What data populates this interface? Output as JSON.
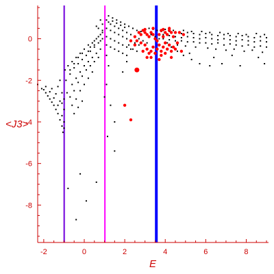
{
  "chart_data": {
    "type": "scatter",
    "title": "",
    "xlabel": "E",
    "ylabel": "<J3>",
    "xlim": [
      -2.3,
      9.1
    ],
    "ylim": [
      -9.8,
      1.6
    ],
    "x_ticks": [
      -2,
      0,
      2,
      4,
      6,
      8
    ],
    "y_ticks": [
      0,
      -2,
      -4,
      -6,
      -8
    ],
    "grid": false,
    "vertical_lines": [
      {
        "x": -0.99,
        "color": "#8a2be2"
      },
      {
        "x": 1.02,
        "color": "#ff00ff"
      },
      {
        "x": 3.56,
        "color": "#0000ff"
      }
    ],
    "series": [
      {
        "color": "#000000",
        "marker": "small-dot",
        "points": [
          [
            -2.3,
            -2.2
          ],
          [
            -2.1,
            -2.4
          ],
          [
            -1.9,
            -2.6
          ],
          [
            -1.7,
            -2.9
          ],
          [
            -1.5,
            -3.2
          ],
          [
            -1.3,
            -3.6
          ],
          [
            -1.1,
            -4.2
          ],
          [
            -1.05,
            -4.5
          ],
          [
            -2.0,
            -2.45
          ],
          [
            -1.8,
            -2.75
          ],
          [
            -1.6,
            -3.05
          ],
          [
            -1.4,
            -3.4
          ],
          [
            -1.2,
            -3.9
          ],
          [
            -1.9,
            -2.3
          ],
          [
            -1.7,
            -2.55
          ],
          [
            -1.5,
            -2.85
          ],
          [
            -1.3,
            -3.2
          ],
          [
            -1.1,
            -3.7
          ],
          [
            -1.6,
            -2.4
          ],
          [
            -1.4,
            -2.65
          ],
          [
            -1.2,
            -3.0
          ],
          [
            -1.0,
            -3.4
          ],
          [
            -1.3,
            -2.3
          ],
          [
            -1.1,
            -2.6
          ],
          [
            -1.0,
            -2.9
          ],
          [
            -1.2,
            -2.0
          ],
          [
            -1.1,
            -3.1
          ],
          [
            -1.0,
            -4.0
          ],
          [
            -1.0,
            -4.3
          ],
          [
            -0.95,
            -1.5
          ],
          [
            -0.8,
            -1.3
          ],
          [
            -0.6,
            -1.1
          ],
          [
            -0.4,
            -0.9
          ],
          [
            -0.2,
            -0.7
          ],
          [
            0.0,
            -0.5
          ],
          [
            0.2,
            -0.3
          ],
          [
            0.4,
            -0.2
          ],
          [
            0.6,
            0.0
          ],
          [
            0.8,
            0.2
          ],
          [
            0.9,
            0.3
          ],
          [
            -0.9,
            -2.0
          ],
          [
            -0.7,
            -1.7
          ],
          [
            -0.5,
            -1.4
          ],
          [
            -0.3,
            -1.2
          ],
          [
            -0.1,
            -1.0
          ],
          [
            0.1,
            -0.8
          ],
          [
            0.3,
            -0.6
          ],
          [
            0.5,
            -0.4
          ],
          [
            0.7,
            -0.2
          ],
          [
            0.9,
            0.0
          ],
          [
            -0.85,
            -2.6
          ],
          [
            -0.6,
            -2.2
          ],
          [
            -0.4,
            -1.9
          ],
          [
            -0.2,
            -1.6
          ],
          [
            0.0,
            -1.3
          ],
          [
            0.2,
            -1.1
          ],
          [
            0.4,
            -0.9
          ],
          [
            0.6,
            -0.7
          ],
          [
            0.8,
            -0.5
          ],
          [
            -0.7,
            -2.8
          ],
          [
            -0.5,
            -2.5
          ],
          [
            -0.3,
            -2.1
          ],
          [
            -0.1,
            -1.8
          ],
          [
            0.1,
            -1.5
          ],
          [
            0.3,
            -1.3
          ],
          [
            0.5,
            -1.1
          ],
          [
            0.7,
            -0.9
          ],
          [
            -0.6,
            -3.2
          ],
          [
            -0.4,
            -2.9
          ],
          [
            -0.2,
            -2.5
          ],
          [
            0.0,
            -2.2
          ],
          [
            0.2,
            -1.9
          ],
          [
            0.4,
            -1.6
          ],
          [
            -0.5,
            -3.6
          ],
          [
            -0.3,
            -3.3
          ],
          [
            -0.1,
            -3.0
          ],
          [
            -0.7,
            -1.5
          ],
          [
            -0.5,
            -1.2
          ],
          [
            -0.3,
            -0.9
          ],
          [
            -0.1,
            -0.7
          ],
          [
            0.2,
            -0.6
          ],
          [
            0.5,
            -0.3
          ],
          [
            0.8,
            -0.1
          ],
          [
            0.3,
            -0.4
          ],
          [
            0.5,
            -0.1
          ],
          [
            0.7,
            0.1
          ],
          [
            0.9,
            0.4
          ],
          [
            0.7,
            0.5
          ],
          [
            0.9,
            0.7
          ],
          [
            0.8,
            0.9
          ],
          [
            0.6,
            0.6
          ],
          [
            1.1,
            0.9
          ],
          [
            1.3,
            0.7
          ],
          [
            1.5,
            0.6
          ],
          [
            1.7,
            0.5
          ],
          [
            1.9,
            0.4
          ],
          [
            2.1,
            0.3
          ],
          [
            2.3,
            0.2
          ],
          [
            2.5,
            0.1
          ],
          [
            2.7,
            0.0
          ],
          [
            2.9,
            -0.1
          ],
          [
            3.1,
            -0.2
          ],
          [
            1.1,
            0.5
          ],
          [
            1.3,
            0.4
          ],
          [
            1.5,
            0.3
          ],
          [
            1.7,
            0.2
          ],
          [
            1.9,
            0.1
          ],
          [
            2.1,
            0.0
          ],
          [
            2.3,
            -0.1
          ],
          [
            2.5,
            -0.2
          ],
          [
            2.7,
            -0.3
          ],
          [
            1.1,
            0.1
          ],
          [
            1.3,
            0.0
          ],
          [
            1.5,
            -0.1
          ],
          [
            1.7,
            -0.2
          ],
          [
            1.9,
            -0.3
          ],
          [
            2.1,
            -0.4
          ],
          [
            2.3,
            -0.5
          ],
          [
            1.1,
            -0.3
          ],
          [
            1.3,
            -0.4
          ],
          [
            1.5,
            -0.5
          ],
          [
            1.7,
            -0.6
          ],
          [
            1.9,
            -0.7
          ],
          [
            2.1,
            -0.8
          ],
          [
            1.2,
            1.1
          ],
          [
            1.4,
            1.0
          ],
          [
            1.6,
            0.9
          ],
          [
            1.8,
            0.8
          ],
          [
            2.0,
            0.7
          ],
          [
            2.2,
            0.6
          ],
          [
            2.4,
            0.5
          ],
          [
            1.2,
            0.8
          ],
          [
            1.4,
            0.85
          ],
          [
            1.6,
            0.75
          ],
          [
            1.8,
            0.65
          ],
          [
            2.0,
            0.55
          ],
          [
            1.1,
            -0.8
          ],
          [
            1.2,
            -1.3
          ],
          [
            1.1,
            -2.2
          ],
          [
            1.0,
            -2.8
          ],
          [
            1.3,
            -3.2
          ],
          [
            1.5,
            -4.0
          ],
          [
            1.15,
            -4.7
          ],
          [
            1.5,
            -5.4
          ],
          [
            -0.8,
            -7.2
          ],
          [
            -0.4,
            -8.7
          ],
          [
            -0.2,
            -6.5
          ],
          [
            0.1,
            -7.8
          ],
          [
            0.6,
            -6.9
          ],
          [
            3.9,
            0.4
          ],
          [
            4.2,
            0.35
          ],
          [
            4.5,
            0.3
          ],
          [
            4.8,
            0.25
          ],
          [
            5.1,
            0.3
          ],
          [
            5.4,
            0.25
          ],
          [
            5.7,
            0.2
          ],
          [
            6.0,
            0.25
          ],
          [
            6.3,
            0.2
          ],
          [
            6.6,
            0.15
          ],
          [
            6.9,
            0.2
          ],
          [
            7.2,
            0.15
          ],
          [
            7.5,
            0.1
          ],
          [
            7.8,
            0.15
          ],
          [
            8.1,
            0.1
          ],
          [
            8.4,
            0.05
          ],
          [
            8.7,
            0.1
          ],
          [
            9.0,
            0.05
          ],
          [
            3.9,
            0.2
          ],
          [
            4.2,
            0.15
          ],
          [
            4.5,
            0.1
          ],
          [
            4.8,
            0.05
          ],
          [
            5.1,
            0.1
          ],
          [
            5.4,
            0.05
          ],
          [
            5.7,
            0.0
          ],
          [
            6.0,
            0.05
          ],
          [
            6.3,
            0.0
          ],
          [
            6.6,
            -0.05
          ],
          [
            6.9,
            0.0
          ],
          [
            7.2,
            -0.05
          ],
          [
            7.5,
            -0.1
          ],
          [
            7.8,
            -0.05
          ],
          [
            8.1,
            -0.1
          ],
          [
            8.4,
            -0.15
          ],
          [
            8.7,
            -0.1
          ],
          [
            9.0,
            -0.15
          ],
          [
            3.9,
            0.0
          ],
          [
            4.2,
            -0.05
          ],
          [
            4.5,
            -0.1
          ],
          [
            4.8,
            -0.1
          ],
          [
            5.1,
            -0.15
          ],
          [
            5.4,
            -0.15
          ],
          [
            5.7,
            -0.2
          ],
          [
            6.0,
            -0.2
          ],
          [
            6.3,
            -0.25
          ],
          [
            6.6,
            -0.2
          ],
          [
            6.9,
            -0.3
          ],
          [
            7.2,
            -0.25
          ],
          [
            7.5,
            -0.3
          ],
          [
            7.8,
            -0.35
          ],
          [
            8.1,
            -0.3
          ],
          [
            8.4,
            -0.4
          ],
          [
            8.7,
            -0.35
          ],
          [
            9.0,
            -0.4
          ],
          [
            4.0,
            0.45
          ],
          [
            4.4,
            0.4
          ],
          [
            4.9,
            0.4
          ],
          [
            5.3,
            0.35
          ],
          [
            5.8,
            0.35
          ],
          [
            6.2,
            0.3
          ],
          [
            6.7,
            0.3
          ],
          [
            7.1,
            0.25
          ],
          [
            7.6,
            0.25
          ],
          [
            8.0,
            0.2
          ],
          [
            8.5,
            0.25
          ],
          [
            8.9,
            0.2
          ],
          [
            4.1,
            -0.2
          ],
          [
            4.6,
            -0.3
          ],
          [
            5.0,
            -0.35
          ],
          [
            5.5,
            -0.4
          ],
          [
            6.1,
            -0.45
          ],
          [
            6.5,
            -0.5
          ],
          [
            7.0,
            -0.55
          ],
          [
            7.4,
            -0.5
          ],
          [
            7.9,
            -0.6
          ],
          [
            8.3,
            -0.55
          ],
          [
            8.8,
            -0.65
          ],
          [
            5.2,
            -0.7
          ],
          [
            6.4,
            -0.9
          ],
          [
            7.3,
            -0.8
          ],
          [
            8.6,
            -0.9
          ],
          [
            6.8,
            -1.2
          ],
          [
            7.7,
            -1.3
          ],
          [
            8.9,
            -1.2
          ],
          [
            3.2,
            0.5
          ],
          [
            3.4,
            0.45
          ],
          [
            3.6,
            0.4
          ],
          [
            3.8,
            0.35
          ],
          [
            3.3,
            0.2
          ],
          [
            3.5,
            0.1
          ],
          [
            3.7,
            0.0
          ],
          [
            2.6,
            0.4
          ],
          [
            2.8,
            0.35
          ],
          [
            3.0,
            0.3
          ],
          [
            2.4,
            -0.5
          ],
          [
            2.6,
            -0.6
          ],
          [
            2.2,
            -0.3
          ],
          [
            4.3,
            -0.4
          ],
          [
            4.6,
            -0.6
          ],
          [
            4.9,
            -0.8
          ],
          [
            5.3,
            -1.0
          ],
          [
            5.7,
            -1.2
          ],
          [
            6.2,
            -1.3
          ],
          [
            2.1,
            -1.1
          ],
          [
            1.9,
            -1.6
          ]
        ]
      },
      {
        "color": "#ff0000",
        "marker": "large-dot",
        "points": [
          [
            2.6,
            -1.5
          ],
          [
            2.3,
            -3.9
          ],
          [
            2.0,
            -3.2
          ],
          [
            2.7,
            0.3
          ],
          [
            2.8,
            0.2
          ],
          [
            2.9,
            0.4
          ],
          [
            3.0,
            0.3
          ],
          [
            3.1,
            0.2
          ],
          [
            3.2,
            0.1
          ],
          [
            3.3,
            0.3
          ],
          [
            3.4,
            0.2
          ],
          [
            3.5,
            0.0
          ],
          [
            3.6,
            -0.1
          ],
          [
            3.7,
            0.2
          ],
          [
            3.8,
            0.4
          ],
          [
            3.9,
            0.1
          ],
          [
            4.0,
            0.3
          ],
          [
            4.1,
            0.2
          ],
          [
            4.2,
            0.4
          ],
          [
            4.3,
            0.3
          ],
          [
            4.4,
            0.1
          ],
          [
            4.5,
            0.3
          ],
          [
            2.8,
            -0.2
          ],
          [
            3.0,
            -0.3
          ],
          [
            3.1,
            -0.5
          ],
          [
            3.2,
            -0.7
          ],
          [
            3.3,
            -0.6
          ],
          [
            3.4,
            -0.4
          ],
          [
            3.6,
            -0.5
          ],
          [
            3.7,
            -0.3
          ],
          [
            3.8,
            -0.6
          ],
          [
            3.9,
            -0.4
          ],
          [
            4.0,
            -0.2
          ],
          [
            4.1,
            -0.5
          ],
          [
            4.2,
            -0.3
          ],
          [
            4.3,
            -0.6
          ],
          [
            4.4,
            -0.4
          ],
          [
            2.5,
            -0.3
          ],
          [
            2.6,
            -0.1
          ],
          [
            2.9,
            -0.6
          ],
          [
            3.1,
            -0.9
          ],
          [
            3.3,
            -0.9
          ],
          [
            3.5,
            -0.7
          ],
          [
            3.8,
            -0.8
          ],
          [
            4.0,
            -0.7
          ],
          [
            4.5,
            -0.5
          ],
          [
            4.6,
            -0.2
          ],
          [
            4.7,
            0.3
          ],
          [
            4.8,
            -0.6
          ],
          [
            4.9,
            0.2
          ],
          [
            3.0,
            0.45
          ],
          [
            3.4,
            0.5
          ],
          [
            3.9,
            0.45
          ],
          [
            4.2,
            0.5
          ],
          [
            2.5,
            0.1
          ],
          [
            2.3,
            -0.1
          ],
          [
            3.7,
            -1.0
          ],
          [
            4.3,
            -0.9
          ]
        ]
      }
    ]
  }
}
